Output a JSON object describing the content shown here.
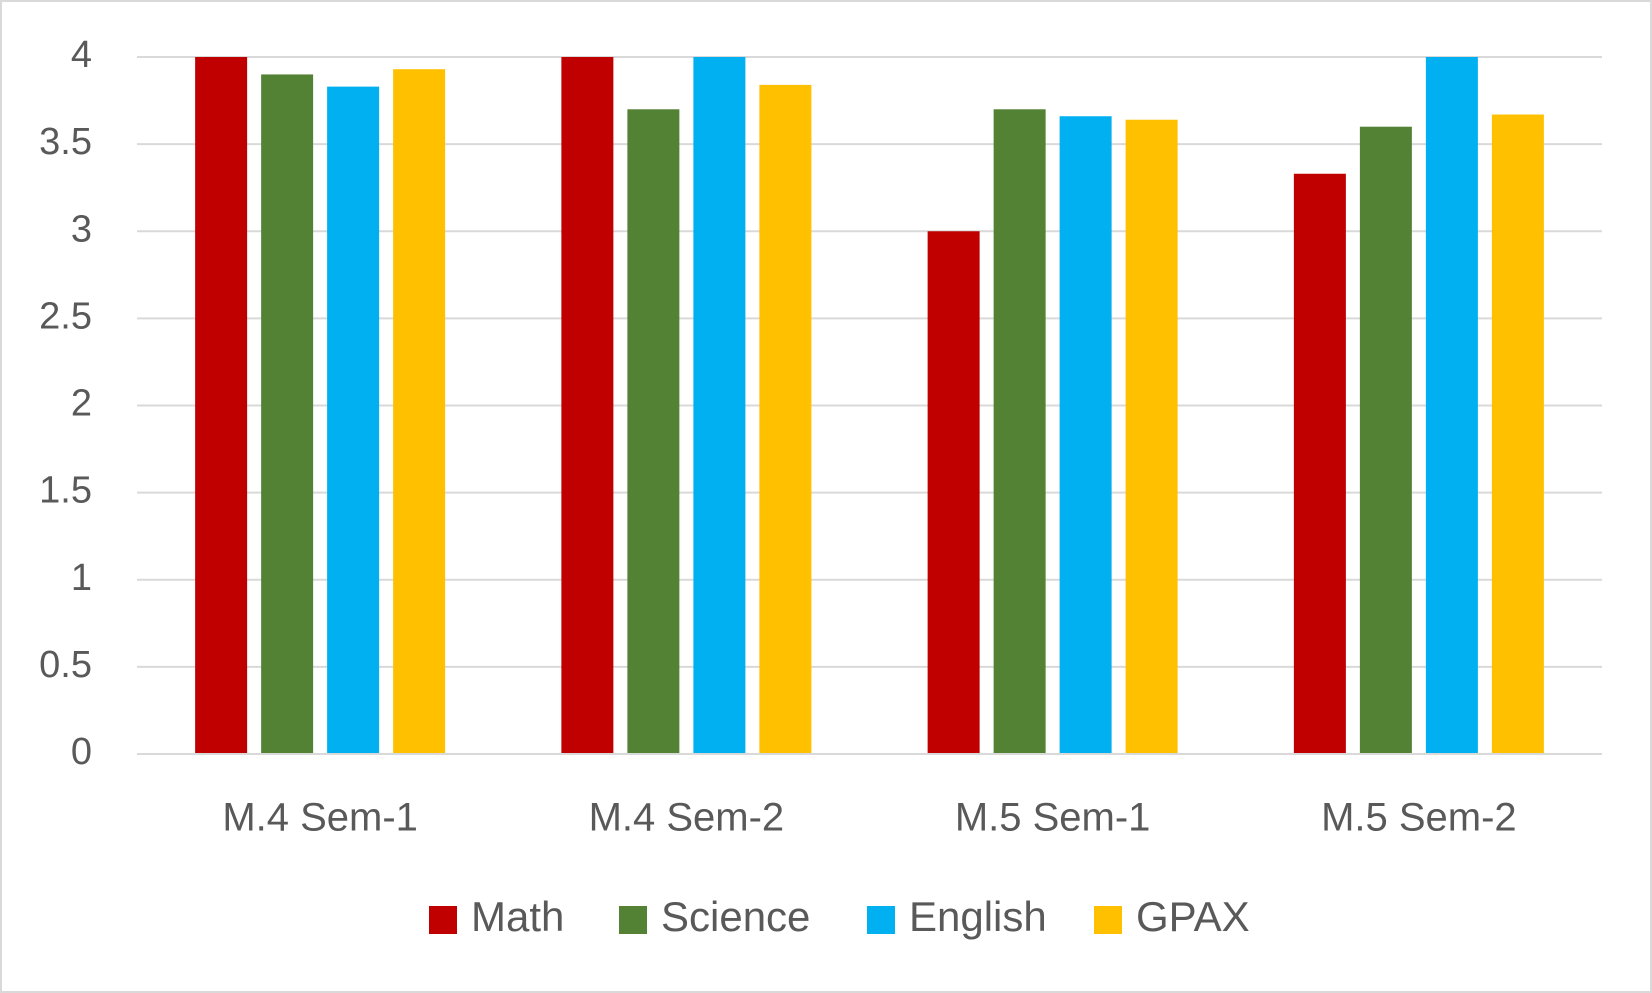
{
  "chart_data": {
    "type": "bar",
    "title": "",
    "xlabel": "",
    "ylabel": "",
    "categories": [
      "M.4 Sem-1",
      "M.4 Sem-2",
      "M.5 Sem-1",
      "M.5 Sem-2"
    ],
    "series": [
      {
        "name": "Math",
        "color": "#c00000",
        "values": [
          4.0,
          4.0,
          3.0,
          3.33
        ]
      },
      {
        "name": "Science",
        "color": "#548235",
        "values": [
          3.9,
          3.7,
          3.7,
          3.6
        ]
      },
      {
        "name": "English",
        "color": "#00b0f0",
        "values": [
          3.83,
          4.0,
          3.66,
          4.0
        ]
      },
      {
        "name": "GPAX",
        "color": "#ffc000",
        "values": [
          3.93,
          3.84,
          3.64,
          3.67
        ]
      }
    ],
    "ylim": [
      0,
      4
    ],
    "yticks": [
      {
        "value": 0,
        "label": "0"
      },
      {
        "value": 0.5,
        "label": "0.5"
      },
      {
        "value": 1,
        "label": "1"
      },
      {
        "value": 1.5,
        "label": "1.5"
      },
      {
        "value": 2,
        "label": "2"
      },
      {
        "value": 2.5,
        "label": "2.5"
      },
      {
        "value": 3,
        "label": "3"
      },
      {
        "value": 3.5,
        "label": "3.5"
      },
      {
        "value": 4,
        "label": "4"
      }
    ],
    "grid": true,
    "gridline_color": "#d9d9d9",
    "legend_position": "bottom"
  }
}
